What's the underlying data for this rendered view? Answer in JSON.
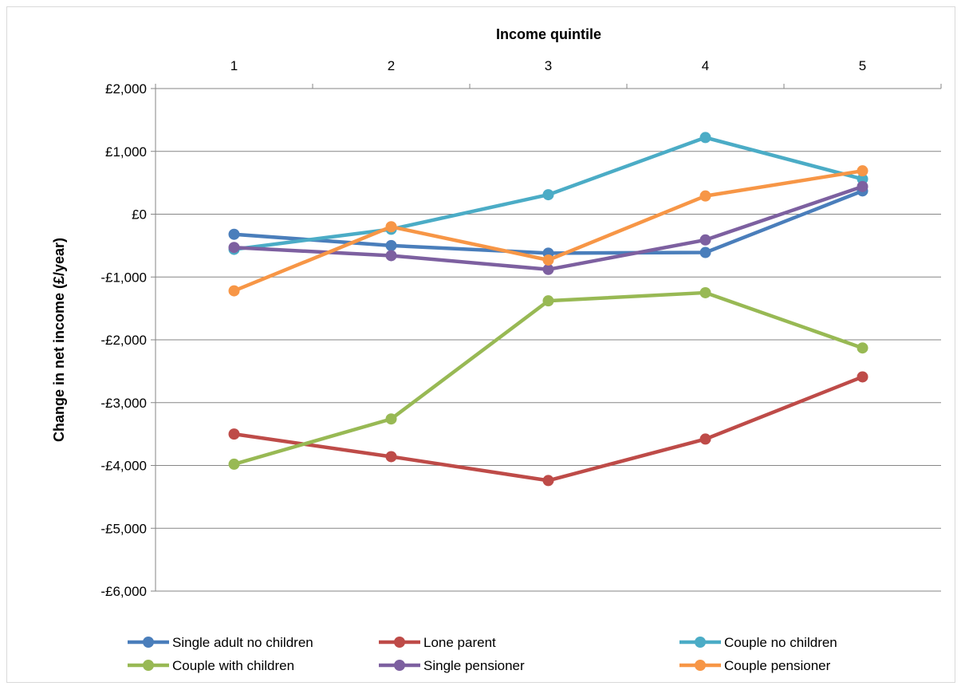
{
  "chart_data": {
    "type": "line",
    "title": "",
    "xlabel": "Income quintile",
    "ylabel": "Change in net income (£/year)",
    "categories": [
      "1",
      "2",
      "3",
      "4",
      "5"
    ],
    "ylim": [
      -6000,
      2000
    ],
    "yticks": [
      2000,
      1000,
      0,
      -1000,
      -2000,
      -3000,
      -4000,
      -5000,
      -6000
    ],
    "ytick_labels": [
      "£2,000",
      "£1,000",
      "£0",
      "-£1,000",
      "-£2,000",
      "-£3,000",
      "-£4,000",
      "-£5,000",
      "-£6,000"
    ],
    "grid": true,
    "x_axis_position": "top",
    "legend_position": "bottom",
    "series": [
      {
        "name": "Single adult no children",
        "color": "#4a7ebb",
        "values": [
          -320,
          -500,
          -620,
          -610,
          370
        ]
      },
      {
        "name": "Lone parent",
        "color": "#be4b48",
        "values": [
          -3500,
          -3860,
          -4240,
          -3580,
          -2590
        ]
      },
      {
        "name": "Couple no children",
        "color": "#4bacc6",
        "values": [
          -560,
          -240,
          310,
          1220,
          560
        ]
      },
      {
        "name": "Couple with children",
        "color": "#98b954",
        "values": [
          -3980,
          -3260,
          -1380,
          -1250,
          -2130
        ]
      },
      {
        "name": "Single pensioner",
        "color": "#7d60a0",
        "values": [
          -530,
          -660,
          -880,
          -410,
          440
        ]
      },
      {
        "name": "Couple pensioner",
        "color": "#f79646",
        "values": [
          -1220,
          -200,
          -730,
          290,
          690
        ]
      }
    ]
  }
}
